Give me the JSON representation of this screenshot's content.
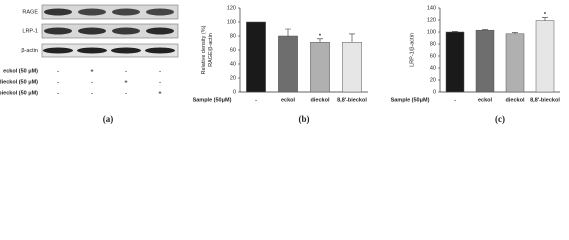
{
  "blot": {
    "bands": [
      "RAGE",
      "LRP-1",
      "β-actin"
    ],
    "treatments": [
      {
        "name": "eckol (50 μM)",
        "marks": [
          "-",
          "+",
          "-",
          "-"
        ]
      },
      {
        "name": "dieckol (50 μM)",
        "marks": [
          "-",
          "-",
          "+",
          "-"
        ]
      },
      {
        "name": "8,8'-bieckol (50 μM)",
        "marks": [
          "-",
          "-",
          "-",
          "+"
        ]
      }
    ],
    "label": "(a)"
  },
  "chart_data": [
    {
      "type": "bar",
      "label": "(b)",
      "ylabel": [
        "Relative density (%)",
        "RAGE/β-actin"
      ],
      "xlabel": "Sample (50μM)",
      "categories": [
        "-",
        "eckol",
        "dieckol",
        "8,8'-bieckol"
      ],
      "values": [
        100,
        80,
        71,
        71
      ],
      "errors": [
        null,
        10,
        5,
        12
      ],
      "colors": [
        "#1a1a1a",
        "#6e6e6e",
        "#b0b0b0",
        "#e6e6e6"
      ],
      "ylim": [
        0,
        120
      ],
      "yticks": [
        0,
        20,
        40,
        60,
        80,
        100,
        120
      ],
      "annotations": [
        {
          "text": "*",
          "category": "dieckol"
        }
      ]
    },
    {
      "type": "bar",
      "label": "(c)",
      "ylabel": [
        "LRP-1/β-actin"
      ],
      "xlabel": "Sample (50μM)",
      "categories": [
        "-",
        "eckol",
        "dieckol",
        "8,8'-bieckol"
      ],
      "values": [
        100,
        103,
        97,
        119
      ],
      "errors": [
        1,
        1,
        2,
        5
      ],
      "colors": [
        "#1a1a1a",
        "#6e6e6e",
        "#b0b0b0",
        "#e6e6e6"
      ],
      "ylim": [
        0,
        140
      ],
      "yticks": [
        0,
        20,
        40,
        60,
        80,
        100,
        120,
        140
      ],
      "annotations": [
        {
          "text": "*",
          "category": "8,8'-bieckol"
        }
      ]
    }
  ]
}
